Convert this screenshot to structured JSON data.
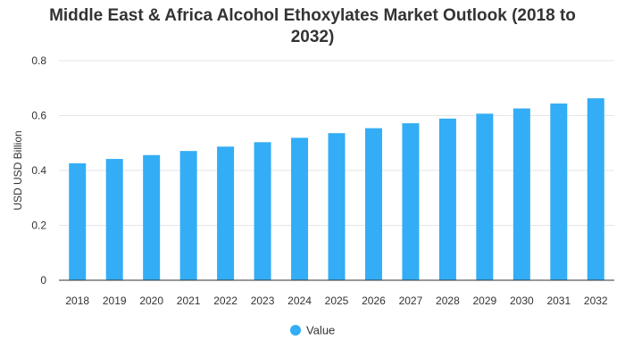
{
  "chart_data": {
    "type": "bar",
    "title_line1": "Middle East & Africa Alcohol Ethoxylates Market Outlook (2018 to",
    "title_line2": "2032)",
    "xlabel": "",
    "ylabel": "USD USD Billion",
    "ylim": [
      0,
      0.8
    ],
    "yticks": [
      "0",
      "0.2",
      "0.4",
      "0.6",
      "0.8"
    ],
    "categories": [
      "2018",
      "2019",
      "2020",
      "2021",
      "2022",
      "2023",
      "2024",
      "2025",
      "2026",
      "2027",
      "2028",
      "2029",
      "2030",
      "2031",
      "2032"
    ],
    "series": [
      {
        "name": "Value",
        "color": "#33adf5",
        "values": [
          0.426,
          0.442,
          0.456,
          0.471,
          0.487,
          0.503,
          0.519,
          0.536,
          0.554,
          0.572,
          0.589,
          0.607,
          0.626,
          0.644,
          0.663
        ]
      }
    ],
    "grid": true,
    "legend_position": "bottom-center"
  }
}
